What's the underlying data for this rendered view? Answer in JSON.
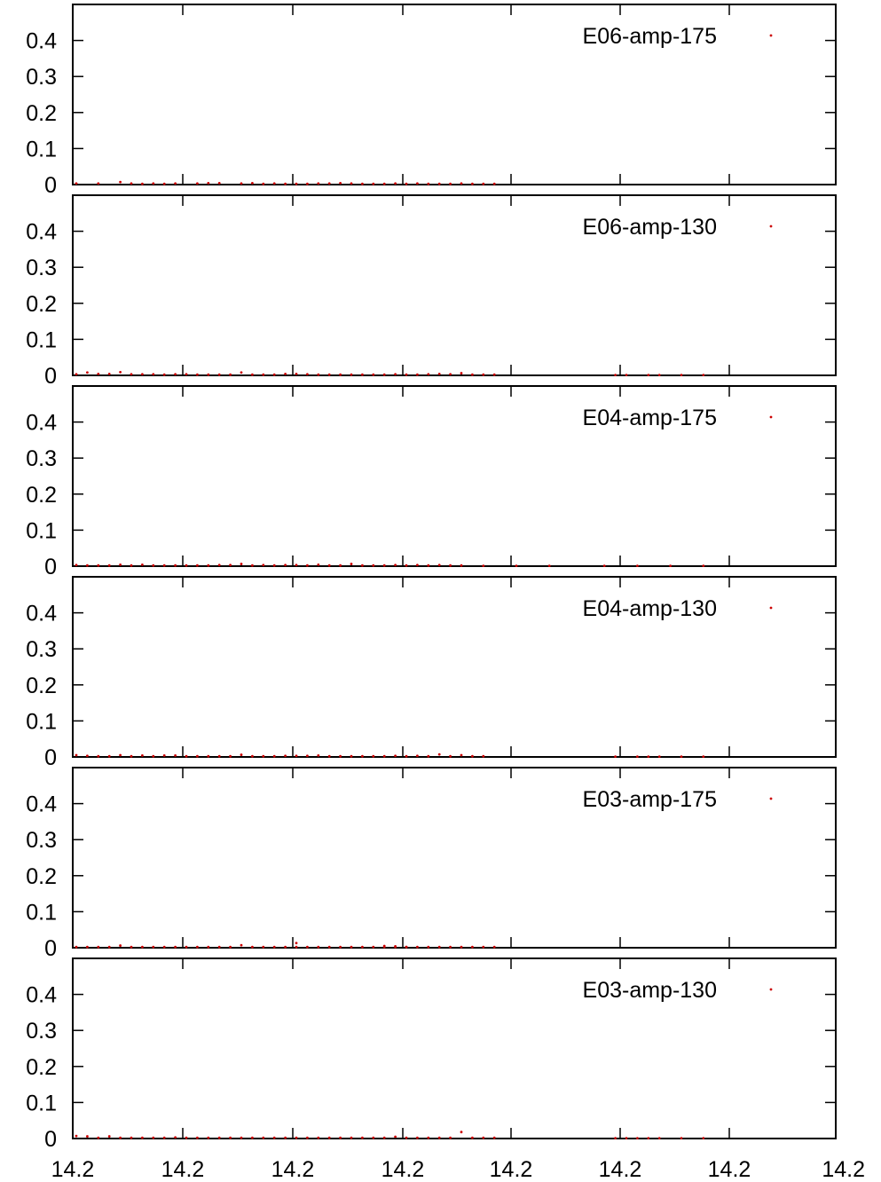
{
  "chart_data": {
    "type": "scatter",
    "x_tick_labels": [
      "14.2",
      "14.2",
      "14.2",
      "14.2",
      "14.2",
      "14.2",
      "14.2",
      "14.2"
    ],
    "y_tick_labels": [
      "0",
      "0.1",
      "0.2",
      "0.3",
      "0.4"
    ],
    "ylim": [
      0,
      0.5
    ],
    "x_index_range": [
      0,
      63
    ],
    "grid": false,
    "legend_position": "top-right",
    "marker_color": "#cc0000",
    "panels": [
      {
        "name": "E06-amp-175",
        "points": [
          [
            0,
            0.003
          ],
          [
            2,
            0.003
          ],
          [
            4,
            0.007
          ],
          [
            5,
            0.003
          ],
          [
            6,
            0.002
          ],
          [
            7,
            0.003
          ],
          [
            8,
            0.002
          ],
          [
            9,
            0.003
          ],
          [
            11,
            0.003
          ],
          [
            12,
            0.004
          ],
          [
            13,
            0.004
          ],
          [
            15,
            0.003
          ],
          [
            16,
            0.004
          ],
          [
            17,
            0.002
          ],
          [
            18,
            0.003
          ],
          [
            19,
            0.002
          ],
          [
            20,
            0.002
          ],
          [
            21,
            0.002
          ],
          [
            22,
            0.003
          ],
          [
            23,
            0.003
          ],
          [
            24,
            0.004
          ],
          [
            25,
            0.003
          ],
          [
            26,
            0.002
          ],
          [
            27,
            0.002
          ],
          [
            28,
            0.002
          ],
          [
            29,
            0.003
          ],
          [
            30,
            0.002
          ],
          [
            31,
            0.003
          ],
          [
            32,
            0.002
          ],
          [
            33,
            0.002
          ],
          [
            34,
            0.002
          ],
          [
            35,
            0.003
          ],
          [
            36,
            0.002
          ],
          [
            37,
            0.002
          ],
          [
            38,
            0.002
          ]
        ]
      },
      {
        "name": "E06-amp-130",
        "points": [
          [
            0,
            0.003
          ],
          [
            1,
            0.008
          ],
          [
            2,
            0.004
          ],
          [
            3,
            0.004
          ],
          [
            4,
            0.009
          ],
          [
            5,
            0.003
          ],
          [
            6,
            0.003
          ],
          [
            7,
            0.003
          ],
          [
            8,
            0.002
          ],
          [
            9,
            0.003
          ],
          [
            10,
            0.003
          ],
          [
            11,
            0.002
          ],
          [
            12,
            0.002
          ],
          [
            13,
            0.002
          ],
          [
            14,
            0.002
          ],
          [
            15,
            0.008
          ],
          [
            16,
            0.002
          ],
          [
            17,
            0.002
          ],
          [
            18,
            0.002
          ],
          [
            19,
            0.004
          ],
          [
            20,
            0.004
          ],
          [
            21,
            0.003
          ],
          [
            22,
            0.002
          ],
          [
            23,
            0.002
          ],
          [
            24,
            0.002
          ],
          [
            25,
            0.002
          ],
          [
            26,
            0.002
          ],
          [
            27,
            0.002
          ],
          [
            28,
            0.002
          ],
          [
            29,
            0.003
          ],
          [
            30,
            0.002
          ],
          [
            31,
            0.002
          ],
          [
            32,
            0.003
          ],
          [
            33,
            0.004
          ],
          [
            34,
            0.003
          ],
          [
            35,
            0.006
          ],
          [
            36,
            0.002
          ],
          [
            37,
            0.002
          ],
          [
            38,
            0.002
          ],
          [
            49,
            0.001
          ],
          [
            50,
            0.001
          ],
          [
            52,
            0.001
          ],
          [
            53,
            0.001
          ],
          [
            55,
            0.001
          ],
          [
            57,
            0.001
          ]
        ]
      },
      {
        "name": "E04-amp-175",
        "points": [
          [
            0,
            0.003
          ],
          [
            1,
            0.002
          ],
          [
            2,
            0.002
          ],
          [
            3,
            0.002
          ],
          [
            4,
            0.004
          ],
          [
            5,
            0.002
          ],
          [
            6,
            0.004
          ],
          [
            7,
            0.002
          ],
          [
            8,
            0.002
          ],
          [
            9,
            0.002
          ],
          [
            10,
            0.002
          ],
          [
            11,
            0.002
          ],
          [
            12,
            0.002
          ],
          [
            13,
            0.003
          ],
          [
            14,
            0.003
          ],
          [
            15,
            0.006
          ],
          [
            16,
            0.002
          ],
          [
            17,
            0.003
          ],
          [
            18,
            0.002
          ],
          [
            19,
            0.003
          ],
          [
            20,
            0.003
          ],
          [
            21,
            0.002
          ],
          [
            22,
            0.004
          ],
          [
            23,
            0.002
          ],
          [
            24,
            0.002
          ],
          [
            25,
            0.006
          ],
          [
            26,
            0.002
          ],
          [
            27,
            0.002
          ],
          [
            28,
            0.002
          ],
          [
            29,
            0.003
          ],
          [
            30,
            0.002
          ],
          [
            31,
            0.003
          ],
          [
            32,
            0.002
          ],
          [
            33,
            0.003
          ],
          [
            34,
            0.002
          ],
          [
            35,
            0.002
          ],
          [
            37,
            0.001
          ],
          [
            40,
            0.001
          ],
          [
            43,
            0.001
          ],
          [
            48,
            0.001
          ],
          [
            51,
            0.001
          ],
          [
            54,
            0.001
          ],
          [
            57,
            0.001
          ]
        ]
      },
      {
        "name": "E04-amp-130",
        "points": [
          [
            0,
            0.005
          ],
          [
            1,
            0.003
          ],
          [
            2,
            0.002
          ],
          [
            3,
            0.002
          ],
          [
            4,
            0.005
          ],
          [
            5,
            0.002
          ],
          [
            6,
            0.004
          ],
          [
            7,
            0.002
          ],
          [
            8,
            0.004
          ],
          [
            9,
            0.004
          ],
          [
            10,
            0.002
          ],
          [
            11,
            0.002
          ],
          [
            12,
            0.002
          ],
          [
            13,
            0.002
          ],
          [
            14,
            0.002
          ],
          [
            15,
            0.006
          ],
          [
            16,
            0.002
          ],
          [
            17,
            0.002
          ],
          [
            18,
            0.002
          ],
          [
            19,
            0.003
          ],
          [
            20,
            0.003
          ],
          [
            21,
            0.003
          ],
          [
            22,
            0.004
          ],
          [
            23,
            0.002
          ],
          [
            24,
            0.002
          ],
          [
            25,
            0.002
          ],
          [
            26,
            0.002
          ],
          [
            27,
            0.002
          ],
          [
            28,
            0.002
          ],
          [
            29,
            0.003
          ],
          [
            30,
            0.002
          ],
          [
            31,
            0.003
          ],
          [
            32,
            0.002
          ],
          [
            33,
            0.007
          ],
          [
            34,
            0.002
          ],
          [
            35,
            0.005
          ],
          [
            36,
            0.002
          ],
          [
            37,
            0.002
          ],
          [
            49,
            0.001
          ],
          [
            51,
            0.001
          ],
          [
            52,
            0.001
          ],
          [
            53,
            0.001
          ],
          [
            55,
            0.001
          ],
          [
            57,
            0.001
          ]
        ]
      },
      {
        "name": "E03-amp-175",
        "points": [
          [
            0,
            0.002
          ],
          [
            1,
            0.002
          ],
          [
            2,
            0.002
          ],
          [
            3,
            0.002
          ],
          [
            4,
            0.006
          ],
          [
            5,
            0.002
          ],
          [
            6,
            0.002
          ],
          [
            7,
            0.002
          ],
          [
            8,
            0.002
          ],
          [
            9,
            0.002
          ],
          [
            10,
            0.002
          ],
          [
            11,
            0.002
          ],
          [
            12,
            0.002
          ],
          [
            13,
            0.002
          ],
          [
            14,
            0.002
          ],
          [
            15,
            0.007
          ],
          [
            16,
            0.002
          ],
          [
            17,
            0.002
          ],
          [
            18,
            0.002
          ],
          [
            19,
            0.002
          ],
          [
            20,
            0.002
          ],
          [
            21,
            0.002
          ],
          [
            22,
            0.002
          ],
          [
            23,
            0.002
          ],
          [
            24,
            0.002
          ],
          [
            25,
            0.002
          ],
          [
            26,
            0.002
          ],
          [
            27,
            0.002
          ],
          [
            28,
            0.002
          ],
          [
            29,
            0.002
          ],
          [
            30,
            0.002
          ],
          [
            31,
            0.002
          ],
          [
            32,
            0.002
          ],
          [
            33,
            0.002
          ],
          [
            34,
            0.002
          ],
          [
            35,
            0.002
          ],
          [
            36,
            0.002
          ],
          [
            37,
            0.002
          ],
          [
            38,
            0.002
          ],
          [
            20,
            0.013
          ],
          [
            28,
            0.005
          ],
          [
            29,
            0.004
          ],
          [
            30,
            0.002
          ]
        ]
      },
      {
        "name": "E03-amp-130",
        "points": [
          [
            0,
            0.007
          ],
          [
            1,
            0.006
          ],
          [
            2,
            0.002
          ],
          [
            3,
            0.006
          ],
          [
            4,
            0.002
          ],
          [
            5,
            0.002
          ],
          [
            6,
            0.002
          ],
          [
            7,
            0.002
          ],
          [
            8,
            0.002
          ],
          [
            9,
            0.003
          ],
          [
            10,
            0.002
          ],
          [
            11,
            0.002
          ],
          [
            12,
            0.002
          ],
          [
            13,
            0.002
          ],
          [
            14,
            0.002
          ],
          [
            15,
            0.002
          ],
          [
            16,
            0.002
          ],
          [
            17,
            0.002
          ],
          [
            18,
            0.002
          ],
          [
            19,
            0.002
          ],
          [
            20,
            0.002
          ],
          [
            21,
            0.002
          ],
          [
            22,
            0.002
          ],
          [
            23,
            0.002
          ],
          [
            24,
            0.002
          ],
          [
            25,
            0.002
          ],
          [
            26,
            0.002
          ],
          [
            27,
            0.002
          ],
          [
            28,
            0.002
          ],
          [
            29,
            0.005
          ],
          [
            30,
            0.002
          ],
          [
            31,
            0.002
          ],
          [
            32,
            0.002
          ],
          [
            33,
            0.002
          ],
          [
            34,
            0.002
          ],
          [
            35,
            0.018
          ],
          [
            36,
            0.002
          ],
          [
            37,
            0.002
          ],
          [
            38,
            0.002
          ],
          [
            49,
            0.001
          ],
          [
            50,
            0.001
          ],
          [
            51,
            0.001
          ],
          [
            52,
            0.001
          ],
          [
            53,
            0.001
          ],
          [
            55,
            0.001
          ],
          [
            57,
            0.001
          ]
        ]
      }
    ]
  }
}
